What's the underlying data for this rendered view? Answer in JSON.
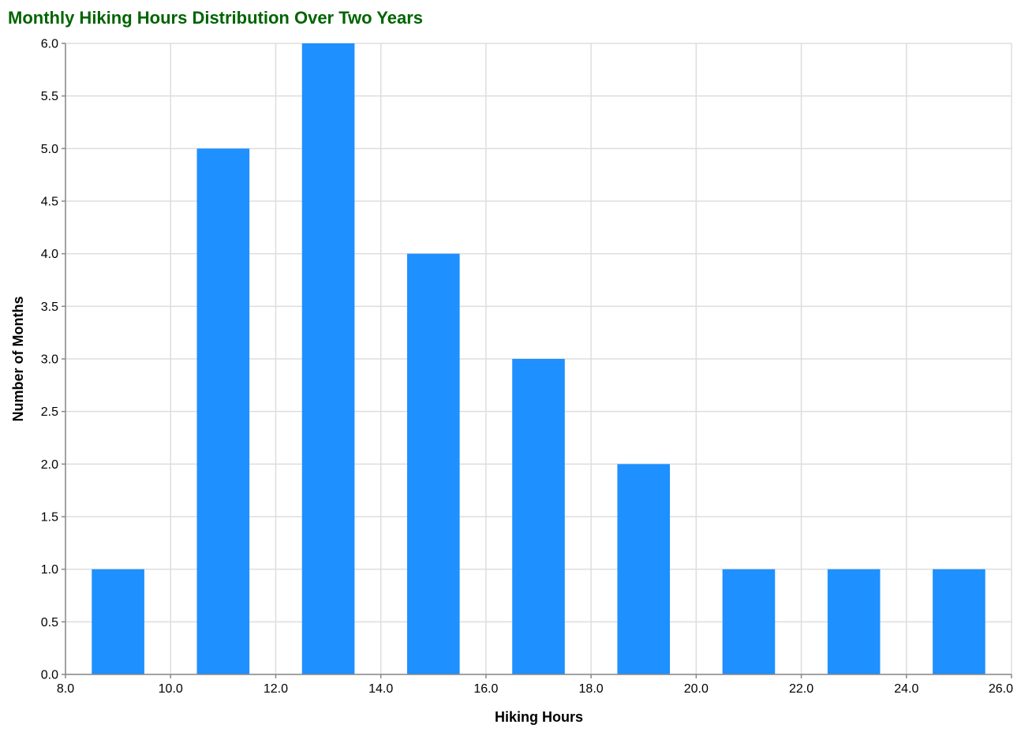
{
  "chart_data": {
    "type": "bar",
    "title": "Monthly Hiking Hours Distribution Over Two Years",
    "xlabel": "Hiking Hours",
    "ylabel": "Number of Months",
    "bins": [
      {
        "x0": 8.5,
        "x1": 9.5,
        "count": 1
      },
      {
        "x0": 10.5,
        "x1": 11.5,
        "count": 5
      },
      {
        "x0": 12.5,
        "x1": 13.5,
        "count": 6
      },
      {
        "x0": 14.5,
        "x1": 15.5,
        "count": 4
      },
      {
        "x0": 16.5,
        "x1": 17.5,
        "count": 3
      },
      {
        "x0": 18.5,
        "x1": 19.5,
        "count": 2
      },
      {
        "x0": 20.5,
        "x1": 21.5,
        "count": 1
      },
      {
        "x0": 22.5,
        "x1": 23.5,
        "count": 1
      },
      {
        "x0": 24.5,
        "x1": 25.5,
        "count": 1
      }
    ],
    "xlim": [
      8,
      26
    ],
    "ylim": [
      0,
      6
    ],
    "x_ticks": [
      "8.0",
      "10.0",
      "12.0",
      "14.0",
      "16.0",
      "18.0",
      "20.0",
      "22.0",
      "24.0",
      "26.0"
    ],
    "y_ticks": [
      "0.0",
      "0.5",
      "1.0",
      "1.5",
      "2.0",
      "2.5",
      "3.0",
      "3.5",
      "4.0",
      "4.5",
      "5.0",
      "5.5",
      "6.0"
    ],
    "grid": true,
    "legend": "none",
    "colors": {
      "bar": "#1e90ff",
      "title": "#006400",
      "grid": "#dddddd",
      "axis": "#888888"
    }
  }
}
